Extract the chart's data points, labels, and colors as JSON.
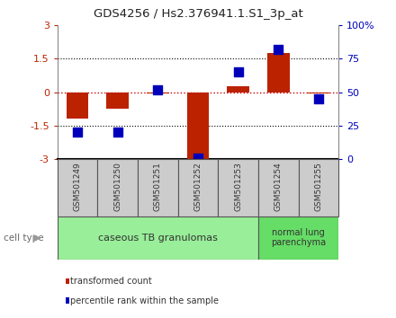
{
  "title": "GDS4256 / Hs2.376941.1.S1_3p_at",
  "samples": [
    "GSM501249",
    "GSM501250",
    "GSM501251",
    "GSM501252",
    "GSM501253",
    "GSM501254",
    "GSM501255"
  ],
  "transformed_count": [
    -1.2,
    -0.75,
    -0.05,
    -3.0,
    0.25,
    1.75,
    -0.05
  ],
  "percentile_rank": [
    20,
    20,
    52,
    1,
    65,
    82,
    45
  ],
  "ylim_left": [
    -3,
    3
  ],
  "ylim_right": [
    0,
    100
  ],
  "yticks_left": [
    -3,
    -1.5,
    0,
    1.5,
    3
  ],
  "yticks_left_labels": [
    "-3",
    "-1.5",
    "0",
    "1.5",
    "3"
  ],
  "yticks_right": [
    0,
    25,
    50,
    75,
    100
  ],
  "yticks_right_labels": [
    "0",
    "25",
    "50",
    "75",
    "100%"
  ],
  "cell_type_groups": [
    {
      "label": "caseous TB granulomas",
      "start": 0,
      "end": 4
    },
    {
      "label": "normal lung\nparenchyma",
      "start": 5,
      "end": 6
    }
  ],
  "bar_color": "#bb2200",
  "dot_color": "#0000bb",
  "zero_line_color": "#cc0000",
  "bg_color": "#ffffff",
  "plot_bg": "#ffffff",
  "group1_color": "#99ee99",
  "group2_color": "#66dd66",
  "sample_box_color": "#cccccc",
  "bar_width": 0.55,
  "dot_size": 55,
  "legend_dot_color": "#0000bb",
  "legend_bar_color": "#bb2200",
  "cell_type_label": "cell type",
  "legend1": "transformed count",
  "legend2": "percentile rank within the sample"
}
